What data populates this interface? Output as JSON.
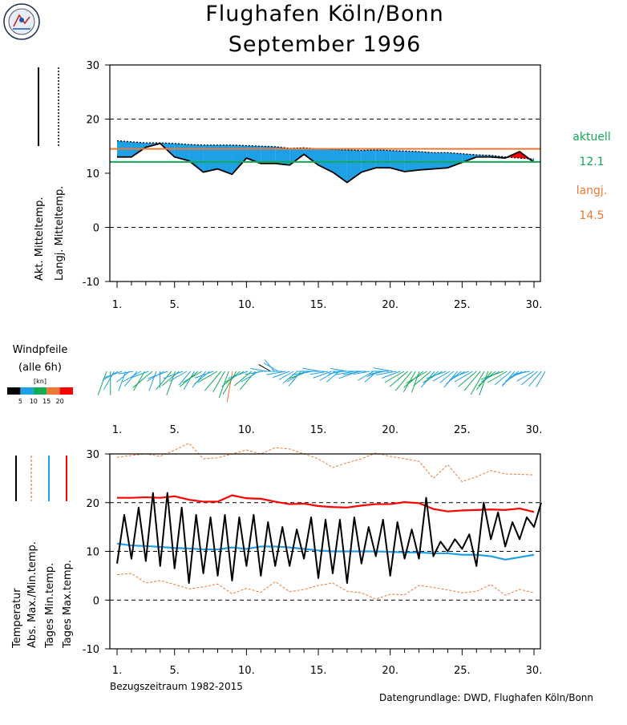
{
  "header": {
    "title_line1": "Flughafen Köln/Bonn",
    "title_line2": "September 1996",
    "logo_icon": "weather-station-seal-icon"
  },
  "colors": {
    "blue": "#1ea0e6",
    "red": "#ff0000",
    "orange": "#ee7733",
    "green": "#11aa55",
    "black": "#000000"
  },
  "chart_data": [
    {
      "type": "area",
      "title": "",
      "x_ticks": [
        "1.",
        "5.",
        "10.",
        "15.",
        "20.",
        "25.",
        "30."
      ],
      "y_ticks": [
        -10,
        0,
        10,
        20,
        30
      ],
      "ylim": [
        -10,
        30
      ],
      "xlim": [
        1,
        30
      ],
      "grid_dashed_at": [
        0,
        20
      ],
      "ylabels": [
        "Akt. Mitteltemp.",
        "Langj. Mitteltemp."
      ],
      "legend_right": {
        "current_label": "aktuell",
        "current_value": "12.1",
        "longterm_label": "langj.",
        "longterm_value": "14.5"
      },
      "current_mean_line": 12.1,
      "longterm_mean_line": 14.5,
      "series": [
        {
          "name": "Akt. Mitteltemp.",
          "x": [
            1,
            2,
            3,
            4,
            5,
            6,
            7,
            8,
            9,
            10,
            11,
            12,
            13,
            14,
            15,
            16,
            17,
            18,
            19,
            20,
            21,
            22,
            23,
            24,
            25,
            26,
            27,
            28,
            29,
            30
          ],
          "values": [
            13.0,
            13.0,
            14.8,
            15.5,
            13.0,
            12.3,
            10.2,
            10.8,
            9.8,
            12.8,
            11.8,
            11.8,
            11.5,
            13.5,
            11.5,
            10.2,
            8.3,
            10.2,
            11.0,
            11.0,
            10.3,
            10.6,
            10.8,
            11.0,
            12.0,
            13.0,
            13.0,
            12.8,
            14.0,
            12.0
          ]
        },
        {
          "name": "Langj. Mitteltemp.",
          "x": [
            1,
            2,
            3,
            4,
            5,
            6,
            7,
            8,
            9,
            10,
            11,
            12,
            13,
            14,
            15,
            16,
            17,
            18,
            19,
            20,
            21,
            22,
            23,
            24,
            25,
            26,
            27,
            28,
            29,
            30
          ],
          "values": [
            16.0,
            15.8,
            15.6,
            15.6,
            15.5,
            15.3,
            15.2,
            15.2,
            15.2,
            15.1,
            15.0,
            14.9,
            14.6,
            14.7,
            14.5,
            14.4,
            14.3,
            14.2,
            14.3,
            14.2,
            14.1,
            14.0,
            13.8,
            13.8,
            13.6,
            13.4,
            13.3,
            13.0,
            12.8,
            12.6
          ]
        }
      ]
    },
    {
      "type": "other",
      "title": "Windpfeile",
      "subtitle": "(alle 6h)",
      "x_ticks": [
        "1.",
        "5.",
        "10.",
        "15.",
        "20.",
        "25.",
        "30."
      ],
      "scale_unit": "[kn]",
      "scale_ticks": [
        "5",
        "10",
        "15",
        "20"
      ],
      "scale_colors": [
        "#000000",
        "#1ea0e6",
        "#11aa55",
        "#ee7733",
        "#ff0000"
      ],
      "samples": [
        [
          200,
          12
        ],
        [
          180,
          11
        ],
        [
          210,
          9
        ],
        [
          240,
          7
        ],
        [
          250,
          8
        ],
        [
          200,
          9
        ],
        [
          230,
          6
        ],
        [
          260,
          5
        ],
        [
          220,
          8
        ],
        [
          240,
          9
        ],
        [
          210,
          10
        ],
        [
          250,
          7
        ],
        [
          230,
          12
        ],
        [
          200,
          9
        ],
        [
          180,
          6
        ],
        [
          240,
          8
        ],
        [
          250,
          9
        ],
        [
          220,
          11
        ],
        [
          200,
          12
        ],
        [
          230,
          10
        ],
        [
          250,
          9
        ],
        [
          240,
          8
        ],
        [
          220,
          7
        ],
        [
          210,
          9
        ],
        [
          230,
          11
        ],
        [
          240,
          10
        ],
        [
          220,
          9
        ],
        [
          230,
          8
        ],
        [
          250,
          8
        ],
        [
          240,
          10
        ],
        [
          220,
          12
        ],
        [
          210,
          11
        ],
        [
          200,
          14
        ],
        [
          190,
          16
        ],
        [
          210,
          13
        ],
        [
          230,
          11
        ],
        [
          240,
          10
        ],
        [
          250,
          9
        ],
        [
          230,
          10
        ],
        [
          220,
          11
        ],
        [
          240,
          9
        ],
        [
          260,
          7
        ],
        [
          280,
          6
        ],
        [
          300,
          4
        ],
        [
          320,
          5
        ],
        [
          300,
          6
        ],
        [
          270,
          7
        ],
        [
          260,
          8
        ],
        [
          250,
          7
        ],
        [
          240,
          6
        ],
        [
          230,
          7
        ],
        [
          220,
          8
        ],
        [
          240,
          9
        ],
        [
          250,
          10
        ],
        [
          260,
          9
        ],
        [
          270,
          8
        ],
        [
          280,
          7
        ],
        [
          270,
          6
        ],
        [
          260,
          7
        ],
        [
          250,
          8
        ],
        [
          240,
          7
        ],
        [
          230,
          6
        ],
        [
          260,
          5
        ],
        [
          280,
          6
        ],
        [
          270,
          7
        ],
        [
          260,
          8
        ],
        [
          250,
          9
        ],
        [
          260,
          8
        ],
        [
          270,
          7
        ],
        [
          260,
          6
        ],
        [
          240,
          7
        ],
        [
          230,
          6
        ],
        [
          250,
          5
        ],
        [
          260,
          6
        ],
        [
          270,
          7
        ],
        [
          280,
          8
        ],
        [
          260,
          9
        ],
        [
          250,
          8
        ],
        [
          240,
          10
        ],
        [
          230,
          11
        ],
        [
          220,
          12
        ],
        [
          210,
          11
        ],
        [
          200,
          10
        ],
        [
          230,
          12
        ],
        [
          240,
          11
        ],
        [
          230,
          10
        ],
        [
          220,
          9
        ],
        [
          230,
          8
        ],
        [
          240,
          10
        ],
        [
          250,
          9
        ],
        [
          240,
          8
        ],
        [
          230,
          7
        ],
        [
          220,
          9
        ],
        [
          230,
          8
        ],
        [
          240,
          7
        ],
        [
          250,
          6
        ],
        [
          240,
          9
        ],
        [
          230,
          11
        ],
        [
          220,
          12
        ],
        [
          210,
          13
        ],
        [
          200,
          12
        ],
        [
          220,
          11
        ],
        [
          230,
          10
        ],
        [
          240,
          9
        ],
        [
          250,
          11
        ],
        [
          240,
          10
        ],
        [
          230,
          9
        ],
        [
          220,
          8
        ],
        [
          230,
          9
        ],
        [
          240,
          8
        ],
        [
          250,
          7
        ],
        [
          260,
          6
        ],
        [
          240,
          8
        ],
        [
          230,
          9
        ],
        [
          220,
          8
        ],
        [
          210,
          7
        ]
      ]
    },
    {
      "type": "line",
      "title": "",
      "x_ticks": [
        "1.",
        "5.",
        "10.",
        "15.",
        "20.",
        "25.",
        "30."
      ],
      "y_ticks": [
        -10,
        0,
        10,
        20,
        30
      ],
      "ylim": [
        -10,
        30
      ],
      "xlim": [
        1,
        30
      ],
      "grid_dashed_at": [
        0,
        10,
        20,
        30
      ],
      "ylabels": [
        "Temperatur",
        "Abs. Max./Min.temp.",
        "Tages Min.temp.",
        "Tages Max.temp."
      ],
      "series": [
        {
          "name": "Abs. Max./Min.temp.",
          "x": [
            1,
            2,
            3,
            4,
            5,
            6,
            7,
            8,
            9,
            10,
            11,
            12,
            13,
            14,
            15,
            16,
            17,
            18,
            19,
            20,
            21,
            22,
            23,
            24,
            25,
            26,
            27,
            28,
            29,
            30
          ],
          "values": [
            29.3,
            29.7,
            30.0,
            29.5,
            30.8,
            32.2,
            29.0,
            29.2,
            30.0,
            30.8,
            30.0,
            31.3,
            31.0,
            30.0,
            29.0,
            27.2,
            28.2,
            29.0,
            30.2,
            29.5,
            29.0,
            28.5,
            25.0,
            27.8,
            24.3,
            25.3,
            26.6,
            25.9,
            25.8,
            25.7
          ]
        },
        {
          "name": "Abs. Max./Min.temp. (min)",
          "x": [
            1,
            2,
            3,
            4,
            5,
            6,
            7,
            8,
            9,
            10,
            11,
            12,
            13,
            14,
            15,
            16,
            17,
            18,
            19,
            20,
            21,
            22,
            23,
            24,
            25,
            26,
            27,
            28,
            29,
            30
          ],
          "values": [
            5.2,
            5.5,
            3.5,
            4.0,
            3.2,
            2.3,
            2.7,
            3.3,
            1.3,
            2.4,
            1.6,
            3.8,
            1.7,
            2.2,
            3.0,
            3.5,
            1.8,
            1.5,
            0.2,
            1.2,
            1.1,
            3.0,
            2.6,
            2.1,
            1.5,
            1.8,
            3.2,
            1.0,
            2.2,
            1.5
          ]
        },
        {
          "name": "Tages Min.temp.",
          "x": [
            1,
            2,
            3,
            4,
            5,
            6,
            7,
            8,
            9,
            10,
            11,
            12,
            13,
            14,
            15,
            16,
            17,
            18,
            19,
            20,
            21,
            22,
            23,
            24,
            25,
            26,
            27,
            28,
            29,
            30
          ],
          "values": [
            11.6,
            11.2,
            11.1,
            10.9,
            10.7,
            10.6,
            10.4,
            10.4,
            10.8,
            10.5,
            11.0,
            11.0,
            10.8,
            10.5,
            10.2,
            10.0,
            10.0,
            10.0,
            10.0,
            9.9,
            9.8,
            9.8,
            9.6,
            9.6,
            9.3,
            9.3,
            9.0,
            8.3,
            8.8,
            9.3
          ]
        },
        {
          "name": "Tages Max.temp.",
          "x": [
            1,
            2,
            3,
            4,
            5,
            6,
            7,
            8,
            9,
            10,
            11,
            12,
            13,
            14,
            15,
            16,
            17,
            18,
            19,
            20,
            21,
            22,
            23,
            24,
            25,
            26,
            27,
            28,
            29,
            30
          ],
          "values": [
            21.0,
            21.0,
            21.1,
            21.0,
            21.3,
            20.6,
            20.2,
            20.2,
            21.5,
            20.9,
            20.8,
            20.2,
            19.7,
            19.8,
            19.3,
            19.1,
            19.0,
            19.4,
            19.7,
            19.7,
            20.1,
            19.9,
            18.7,
            18.2,
            18.4,
            18.5,
            18.6,
            18.5,
            18.8,
            18.1
          ]
        },
        {
          "name": "Temperatur",
          "x": [
            1.0,
            1.5,
            2.0,
            2.5,
            3.0,
            3.5,
            4.0,
            4.5,
            5.0,
            5.5,
            6.0,
            6.5,
            7.0,
            7.5,
            8.0,
            8.5,
            9.0,
            9.5,
            10.0,
            10.5,
            11.0,
            11.5,
            12.0,
            12.5,
            13.0,
            13.5,
            14.0,
            14.5,
            15.0,
            15.5,
            16.0,
            16.5,
            17.0,
            17.5,
            18.0,
            18.5,
            19.0,
            19.5,
            20.0,
            20.5,
            21.0,
            21.5,
            22.0,
            22.5,
            23.0,
            23.5,
            24.0,
            24.5,
            25.0,
            25.5,
            26.0,
            26.5,
            27.0,
            27.5,
            28.0,
            28.5,
            29.0,
            29.5,
            30.0,
            30.5
          ],
          "values": [
            7.5,
            17.5,
            8.5,
            19.0,
            8.0,
            22.0,
            7.0,
            22.0,
            6.5,
            19.0,
            3.5,
            17.5,
            5.5,
            17.0,
            5.0,
            17.5,
            4.0,
            17.0,
            7.0,
            17.5,
            5.0,
            16.0,
            7.0,
            15.0,
            7.0,
            14.5,
            8.5,
            17.0,
            4.5,
            16.5,
            5.5,
            16.5,
            3.5,
            17.0,
            7.5,
            15.0,
            9.0,
            16.5,
            5.0,
            16.0,
            8.5,
            14.5,
            8.5,
            21.0,
            9.0,
            12.0,
            10.0,
            12.5,
            10.5,
            13.5,
            7.0,
            20.0,
            12.5,
            18.0,
            11.0,
            16.0,
            12.5,
            17.0,
            15.0,
            20.0
          ]
        }
      ]
    }
  ],
  "footer": {
    "reference_period": "Bezugszeitraum 1982-2015",
    "data_source": "Datengrundlage: DWD, Flughafen Köln/Bonn"
  }
}
